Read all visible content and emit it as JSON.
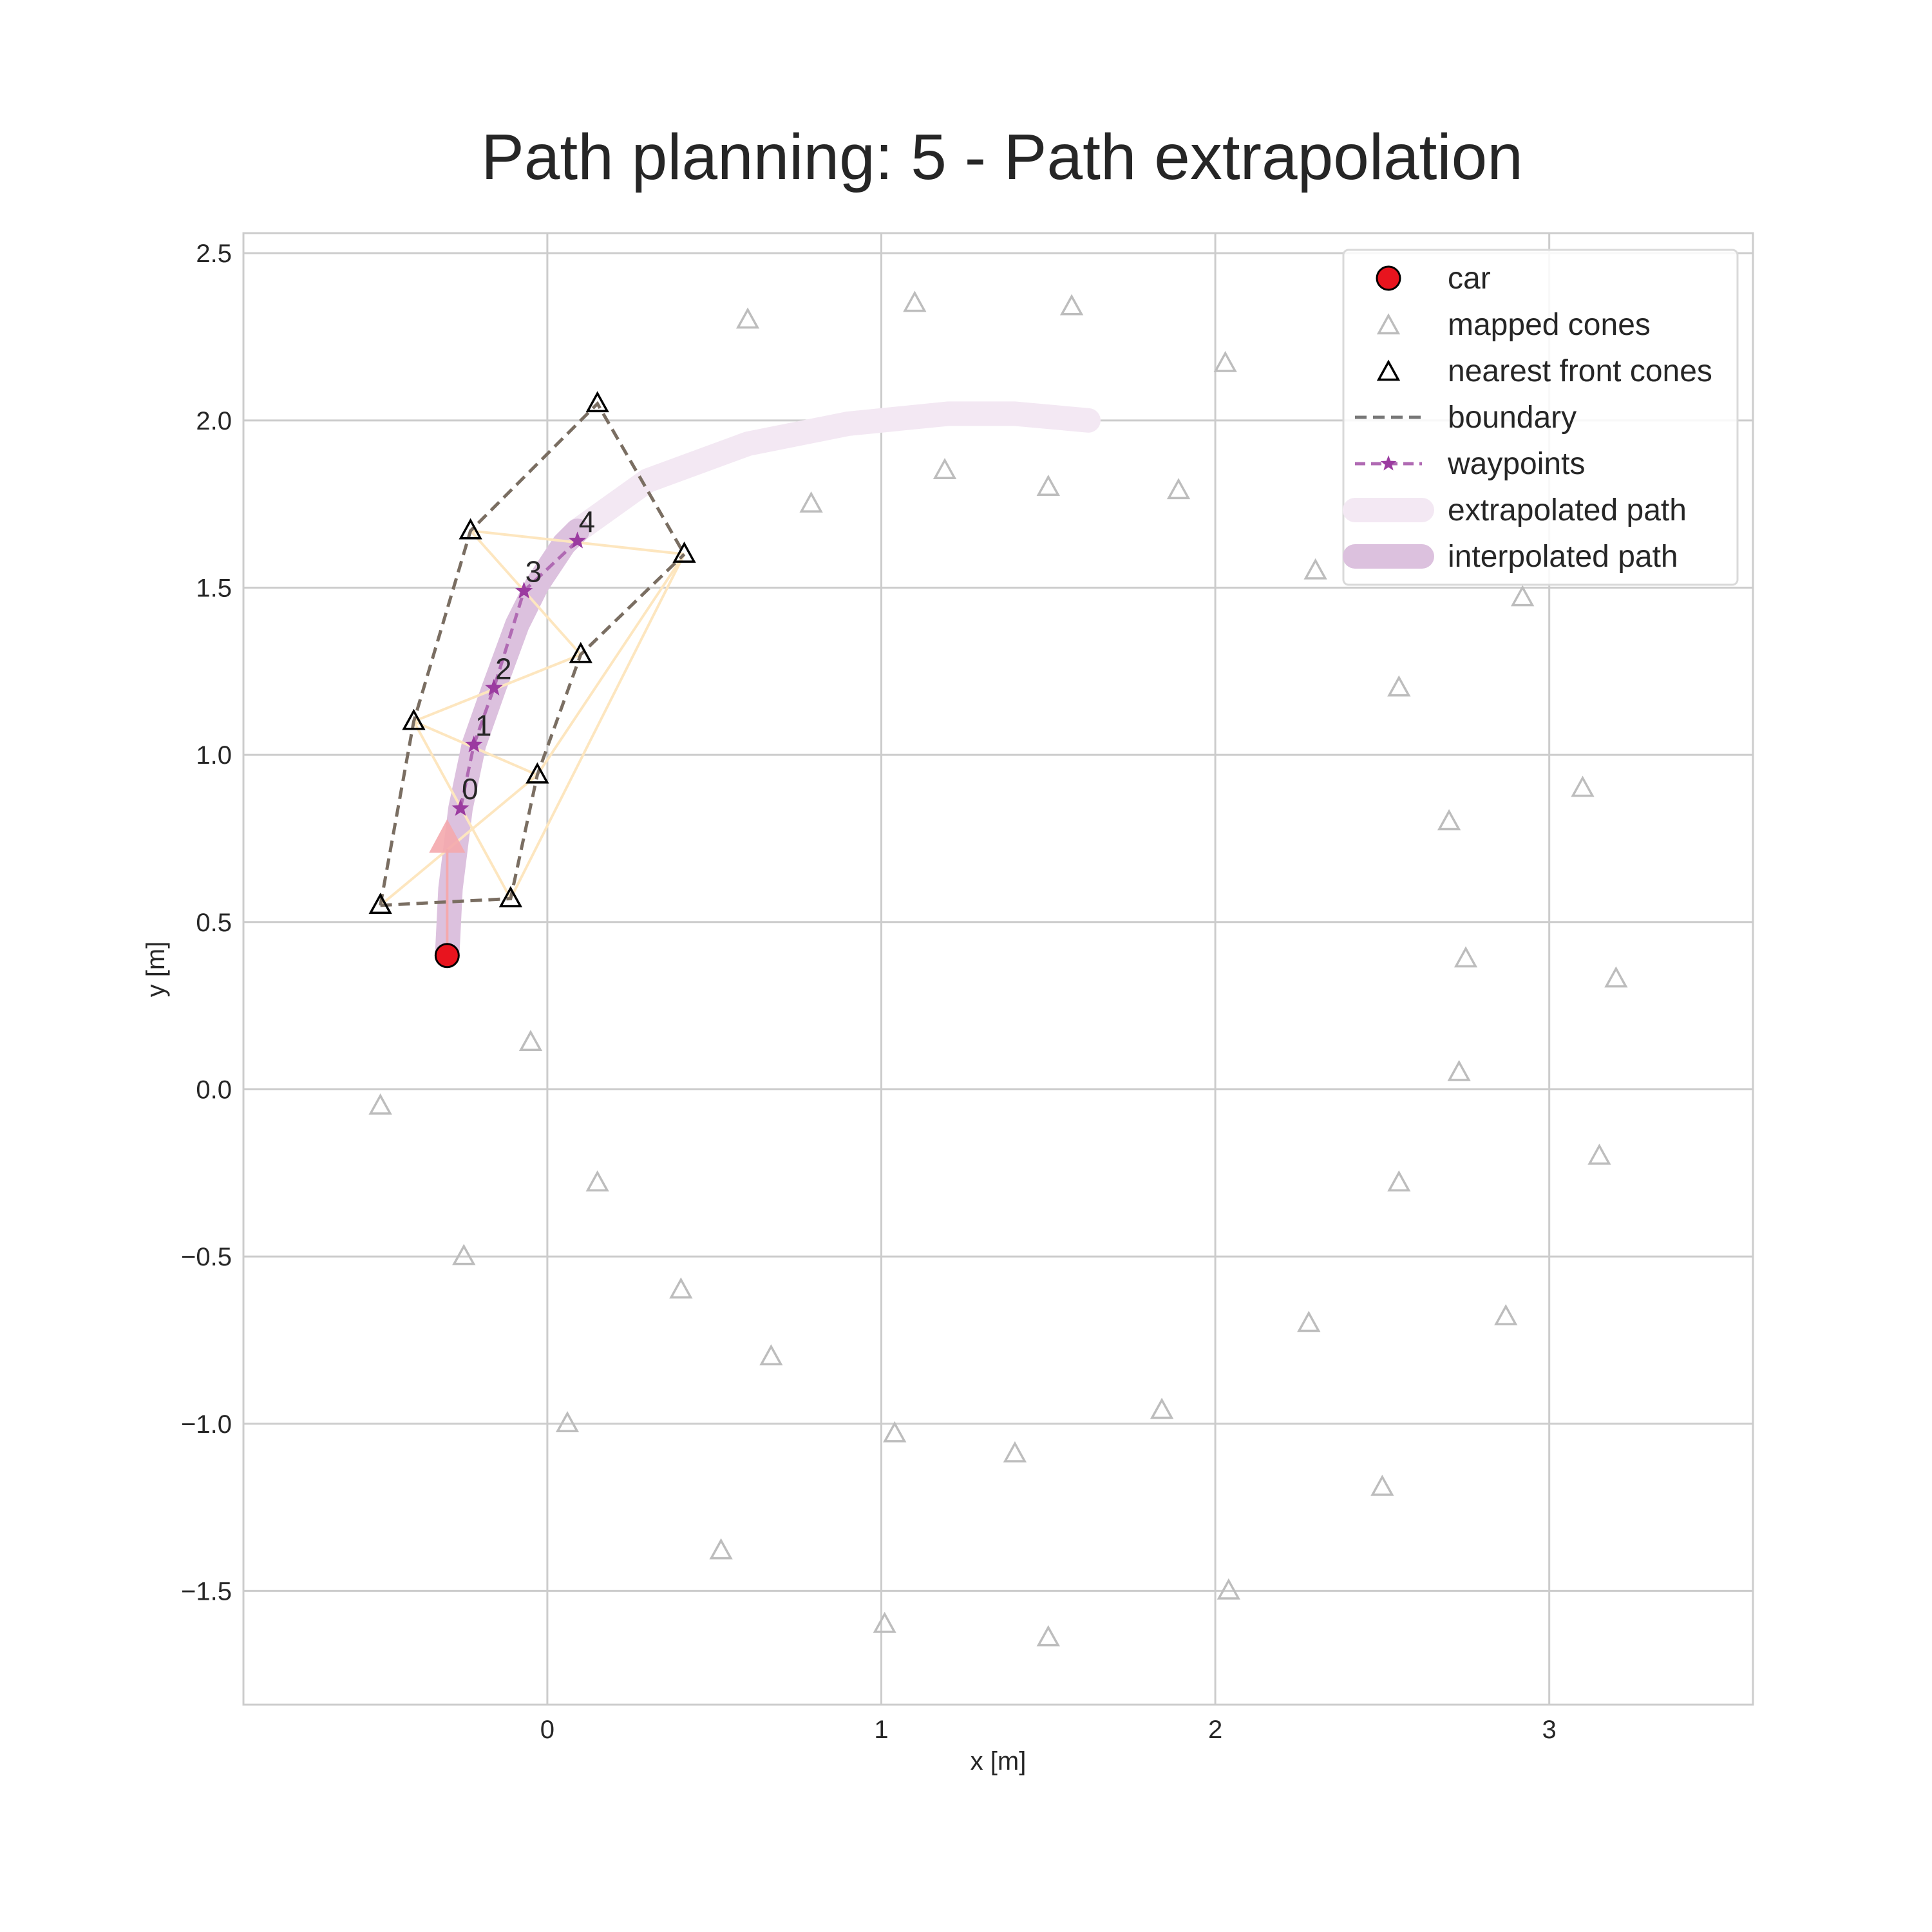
{
  "chart_data": {
    "type": "scatter",
    "title": "Path planning: 5 - Path extrapolation",
    "xlabel": "x [m]",
    "ylabel": "y [m]",
    "xlim": [
      -0.91,
      3.61
    ],
    "ylim": [
      -1.84,
      2.56
    ],
    "xticks": [
      0,
      1,
      2,
      3
    ],
    "xtick_labels": [
      "0",
      "1",
      "2",
      "3"
    ],
    "yticks": [
      -1.5,
      -1.0,
      -0.5,
      0.0,
      0.5,
      1.0,
      1.5,
      2.0,
      2.5
    ],
    "ytick_labels": [
      "−1.5",
      "−1.0",
      "−0.5",
      "0.0",
      "0.5",
      "1.0",
      "1.5",
      "2.0",
      "2.5"
    ],
    "grid": true,
    "legend_position": "top-right",
    "legend": [
      {
        "label": "car",
        "marker": "circle",
        "color": "#e8141e"
      },
      {
        "label": "mapped cones",
        "marker": "triangle",
        "color": "#bdbdbd"
      },
      {
        "label": "nearest front cones",
        "marker": "triangle",
        "color": "#000000"
      },
      {
        "label": "boundary",
        "marker": "dashed-line",
        "color": "#777777"
      },
      {
        "label": "waypoints",
        "marker": "star-dashed-line",
        "color": "#b06ab3"
      },
      {
        "label": "extrapolated path",
        "marker": "thick-line",
        "color": "#f3e8f3"
      },
      {
        "label": "interpolated path",
        "marker": "thick-line",
        "color": "#dcc1de"
      }
    ],
    "car": {
      "x": -0.3,
      "y": 0.4,
      "heading_arrow_tip": {
        "x": -0.3,
        "y": 0.75
      }
    },
    "mapped_cones": [
      {
        "x": 0.6,
        "y": 2.3
      },
      {
        "x": 1.1,
        "y": 2.35
      },
      {
        "x": 1.57,
        "y": 2.34
      },
      {
        "x": 2.03,
        "y": 2.17
      },
      {
        "x": 1.19,
        "y": 1.85
      },
      {
        "x": 0.79,
        "y": 1.75
      },
      {
        "x": 1.5,
        "y": 1.8
      },
      {
        "x": 1.89,
        "y": 1.79
      },
      {
        "x": 2.3,
        "y": 1.55
      },
      {
        "x": 2.92,
        "y": 1.47
      },
      {
        "x": 2.55,
        "y": 1.2
      },
      {
        "x": 3.1,
        "y": 0.9
      },
      {
        "x": 2.7,
        "y": 0.8
      },
      {
        "x": 2.75,
        "y": 0.39
      },
      {
        "x": 3.2,
        "y": 0.33
      },
      {
        "x": 2.73,
        "y": 0.05
      },
      {
        "x": -0.05,
        "y": 0.14
      },
      {
        "x": -0.5,
        "y": -0.05
      },
      {
        "x": 0.15,
        "y": -0.28
      },
      {
        "x": 2.55,
        "y": -0.28
      },
      {
        "x": 3.15,
        "y": -0.2
      },
      {
        "x": -0.25,
        "y": -0.5
      },
      {
        "x": 0.4,
        "y": -0.6
      },
      {
        "x": 0.67,
        "y": -0.8
      },
      {
        "x": 2.28,
        "y": -0.7
      },
      {
        "x": 2.87,
        "y": -0.68
      },
      {
        "x": 0.06,
        "y": -1.0
      },
      {
        "x": 1.04,
        "y": -1.03
      },
      {
        "x": 1.4,
        "y": -1.09
      },
      {
        "x": 1.84,
        "y": -0.96
      },
      {
        "x": 2.5,
        "y": -1.19
      },
      {
        "x": 0.52,
        "y": -1.38
      },
      {
        "x": 2.04,
        "y": -1.5
      },
      {
        "x": 1.01,
        "y": -1.6
      },
      {
        "x": 1.5,
        "y": -1.64
      }
    ],
    "nearest_front_cones": [
      {
        "x": -0.5,
        "y": 0.55
      },
      {
        "x": -0.4,
        "y": 1.1
      },
      {
        "x": -0.23,
        "y": 1.67
      },
      {
        "x": 0.15,
        "y": 2.05
      },
      {
        "x": -0.11,
        "y": 0.57
      },
      {
        "x": -0.03,
        "y": 0.94
      },
      {
        "x": 0.1,
        "y": 1.3
      },
      {
        "x": 0.41,
        "y": 1.6
      }
    ],
    "boundaries": [
      [
        {
          "x": -0.5,
          "y": 0.55
        },
        {
          "x": -0.4,
          "y": 1.1
        },
        {
          "x": -0.23,
          "y": 1.67
        },
        {
          "x": 0.15,
          "y": 2.05
        },
        {
          "x": 0.41,
          "y": 1.6
        }
      ],
      [
        {
          "x": -0.5,
          "y": 0.55
        },
        {
          "x": -0.11,
          "y": 0.57
        },
        {
          "x": -0.03,
          "y": 0.94
        },
        {
          "x": 0.1,
          "y": 1.3
        },
        {
          "x": 0.41,
          "y": 1.6
        }
      ]
    ],
    "triangulation_edges": [
      [
        {
          "x": -0.5,
          "y": 0.55
        },
        {
          "x": -0.03,
          "y": 0.94
        }
      ],
      [
        {
          "x": -0.4,
          "y": 1.1
        },
        {
          "x": -0.11,
          "y": 0.57
        }
      ],
      [
        {
          "x": -0.4,
          "y": 1.1
        },
        {
          "x": -0.03,
          "y": 0.94
        }
      ],
      [
        {
          "x": -0.4,
          "y": 1.1
        },
        {
          "x": 0.1,
          "y": 1.3
        }
      ],
      [
        {
          "x": -0.23,
          "y": 1.67
        },
        {
          "x": 0.1,
          "y": 1.3
        }
      ],
      [
        {
          "x": -0.23,
          "y": 1.67
        },
        {
          "x": 0.41,
          "y": 1.6
        }
      ],
      [
        {
          "x": -0.03,
          "y": 0.94
        },
        {
          "x": 0.41,
          "y": 1.6
        }
      ],
      [
        {
          "x": -0.11,
          "y": 0.57
        },
        {
          "x": 0.41,
          "y": 1.6
        }
      ]
    ],
    "waypoints": {
      "labels": [
        "0",
        "1",
        "2",
        "3",
        "4"
      ],
      "points": [
        {
          "x": -0.26,
          "y": 0.84
        },
        {
          "x": -0.22,
          "y": 1.03
        },
        {
          "x": -0.16,
          "y": 1.2
        },
        {
          "x": -0.07,
          "y": 1.49
        },
        {
          "x": 0.09,
          "y": 1.64
        }
      ]
    },
    "interpolated_path": [
      {
        "x": -0.3,
        "y": 0.4
      },
      {
        "x": -0.29,
        "y": 0.6
      },
      {
        "x": -0.26,
        "y": 0.84
      },
      {
        "x": -0.22,
        "y": 1.03
      },
      {
        "x": -0.16,
        "y": 1.2
      },
      {
        "x": -0.09,
        "y": 1.39
      },
      {
        "x": -0.03,
        "y": 1.51
      },
      {
        "x": 0.05,
        "y": 1.63
      },
      {
        "x": 0.09,
        "y": 1.67
      }
    ],
    "extrapolated_path": [
      {
        "x": 0.09,
        "y": 1.67
      },
      {
        "x": 0.3,
        "y": 1.82
      },
      {
        "x": 0.6,
        "y": 1.93
      },
      {
        "x": 0.9,
        "y": 1.99
      },
      {
        "x": 1.2,
        "y": 2.02
      },
      {
        "x": 1.4,
        "y": 2.02
      },
      {
        "x": 1.62,
        "y": 2.0
      }
    ]
  }
}
